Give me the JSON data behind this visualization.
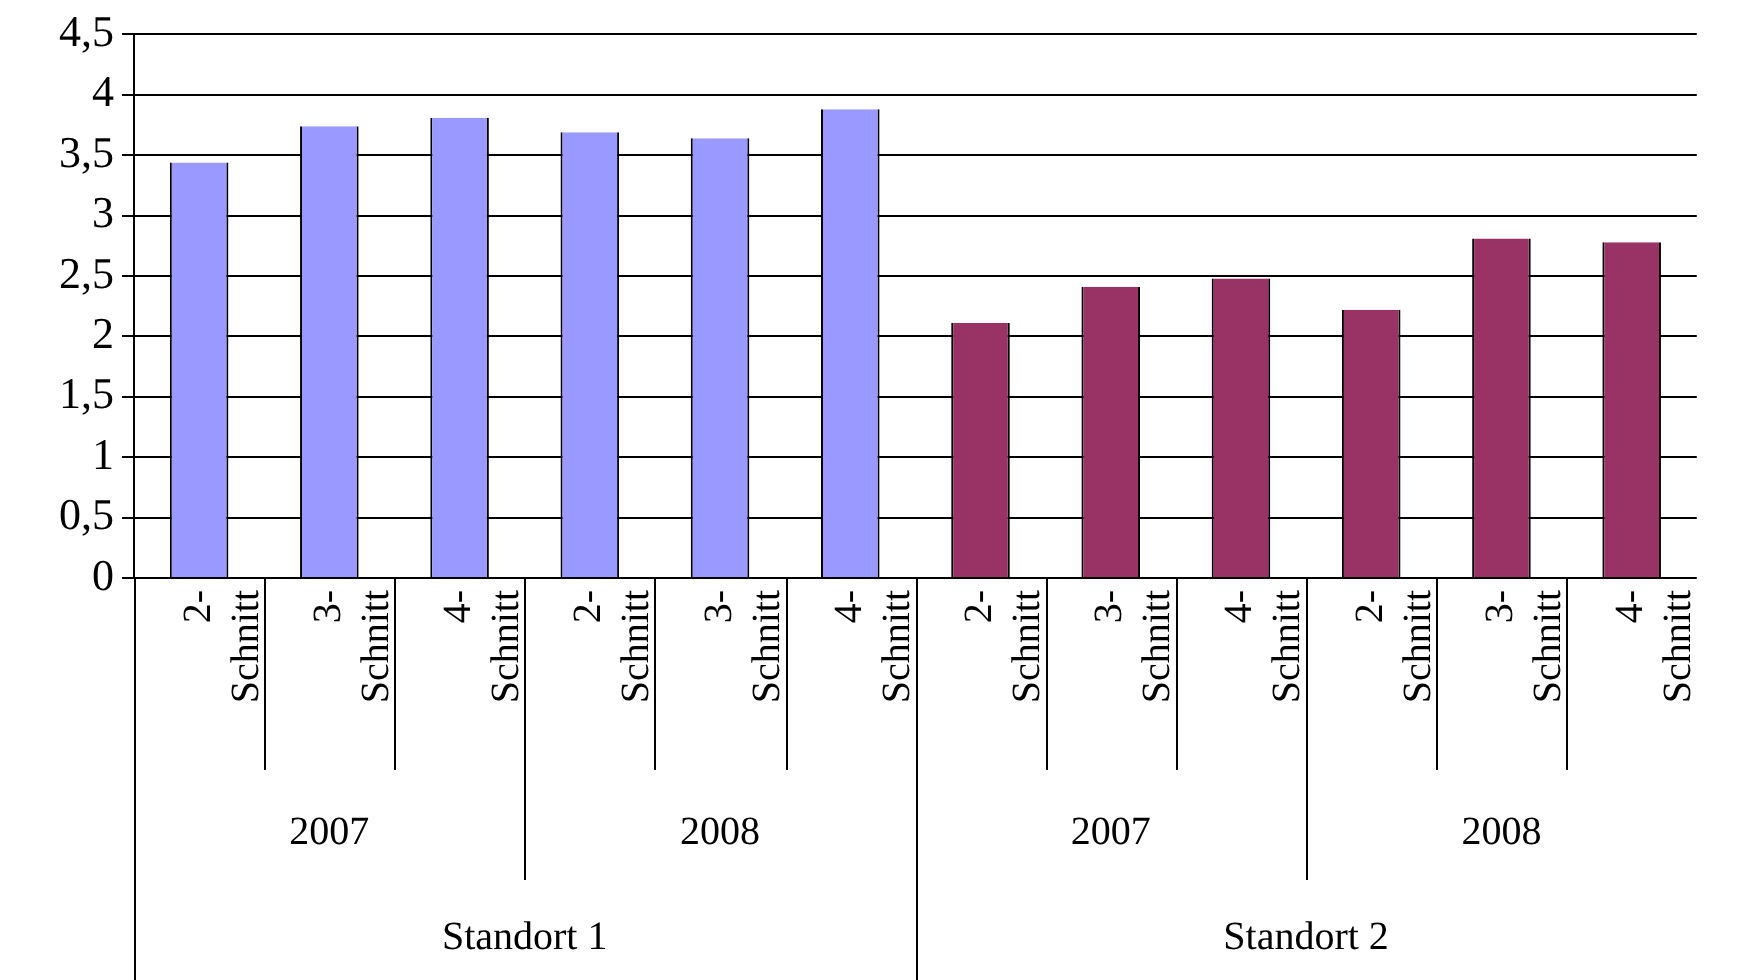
{
  "chart_data": {
    "type": "bar",
    "categories": [
      "2-Schnitt",
      "3-Schnitt",
      "4-Schnitt",
      "2-Schnitt",
      "3-Schnitt",
      "4-Schnitt",
      "2-Schnitt",
      "3-Schnitt",
      "4-Schnitt",
      "2-Schnitt",
      "3-Schnitt",
      "4-Schnitt"
    ],
    "values": [
      3.44,
      3.74,
      3.81,
      3.69,
      3.64,
      3.88,
      2.11,
      2.41,
      2.48,
      2.22,
      2.81,
      2.78
    ],
    "colors": [
      "#9999ff",
      "#9999ff",
      "#9999ff",
      "#9999ff",
      "#9999ff",
      "#9999ff",
      "#993366",
      "#993366",
      "#993366",
      "#993366",
      "#993366",
      "#993366"
    ],
    "ylim": [
      0,
      4.5
    ],
    "yticks": [
      0,
      {
        "value": 0.5,
        "label": "0,5"
      },
      1,
      {
        "value": 1.5,
        "label": "1,5"
      },
      2,
      {
        "value": 2.5,
        "label": "2,5"
      },
      3,
      {
        "value": 3.5,
        "label": "3,5"
      },
      4,
      {
        "value": 4.5,
        "label": "4,5"
      }
    ],
    "grid": "y",
    "legend": false,
    "annotations": [
      "2007",
      "2008",
      "2007",
      "2008",
      "Standort 1",
      "Standort 2"
    ]
  }
}
